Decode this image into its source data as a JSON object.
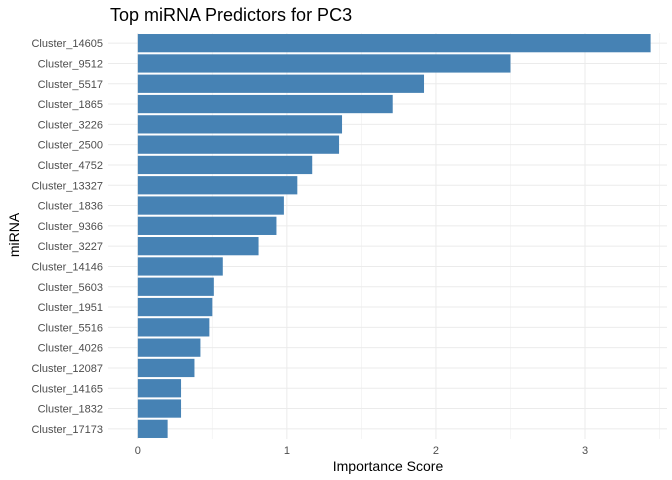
{
  "chart_data": {
    "type": "bar",
    "orientation": "horizontal",
    "title": "Top miRNA Predictors for PC3",
    "xlabel": "Importance Score",
    "ylabel": "miRNA",
    "bar_color": "#4682B4",
    "grid": true,
    "xlim": [
      -0.2,
      3.55
    ],
    "xticks": [
      0,
      1,
      2,
      3
    ],
    "categories": [
      "Cluster_14605",
      "Cluster_9512",
      "Cluster_5517",
      "Cluster_1865",
      "Cluster_3226",
      "Cluster_2500",
      "Cluster_4752",
      "Cluster_13327",
      "Cluster_1836",
      "Cluster_9366",
      "Cluster_3227",
      "Cluster_14146",
      "Cluster_5603",
      "Cluster_1951",
      "Cluster_5516",
      "Cluster_4026",
      "Cluster_12087",
      "Cluster_14165",
      "Cluster_1832",
      "Cluster_17173"
    ],
    "values": [
      3.44,
      2.5,
      1.92,
      1.71,
      1.37,
      1.35,
      1.17,
      1.07,
      0.98,
      0.93,
      0.81,
      0.57,
      0.51,
      0.5,
      0.48,
      0.42,
      0.38,
      0.29,
      0.29,
      0.2
    ]
  }
}
